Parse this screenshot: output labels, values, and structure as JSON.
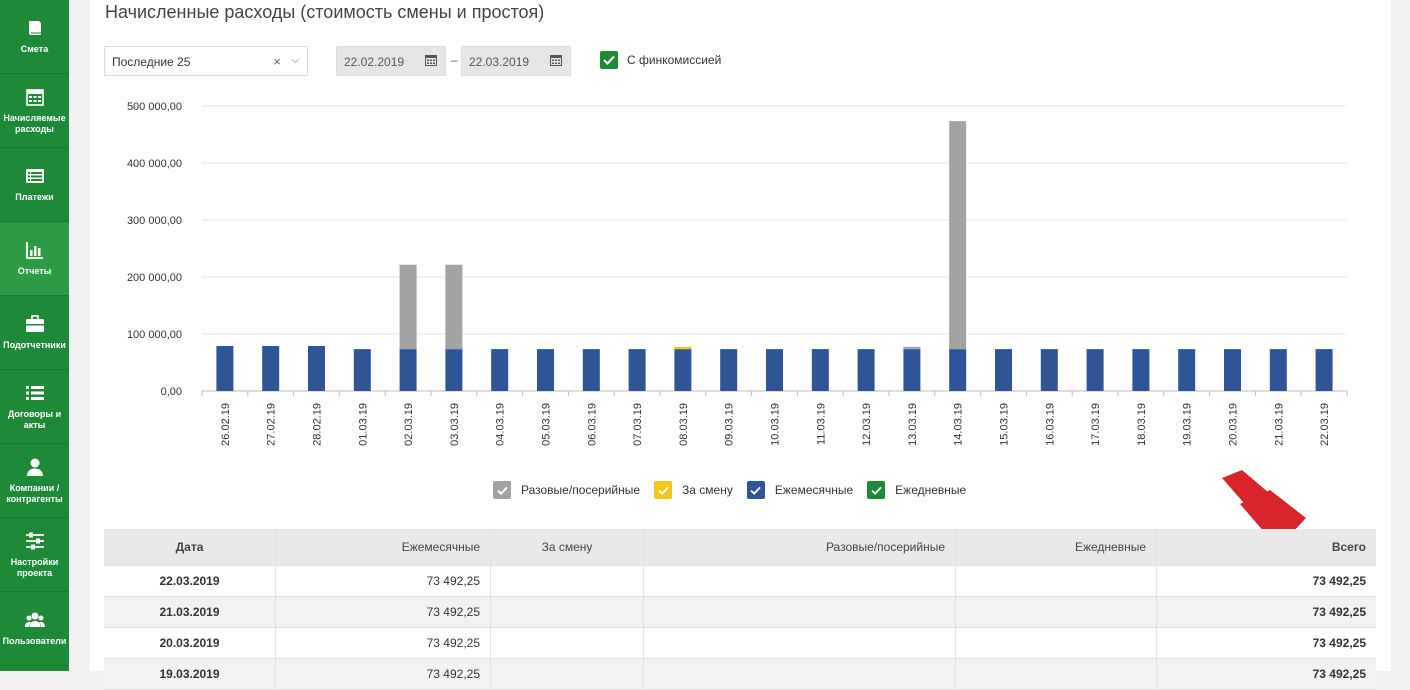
{
  "sidebar": {
    "items": [
      {
        "label": "Смета",
        "icon": "book-icon"
      },
      {
        "label": "Начисляемые расходы",
        "icon": "calendar-icon"
      },
      {
        "label": "Платежи",
        "icon": "list-card-icon"
      },
      {
        "label": "Отчеты",
        "icon": "bar-chart-icon"
      },
      {
        "label": "Подотчетники",
        "icon": "briefcase-icon"
      },
      {
        "label": "Договоры и акты",
        "icon": "list-icon"
      },
      {
        "label": "Компании / контрагенты",
        "icon": "user-icon"
      },
      {
        "label": "Настройки проекта",
        "icon": "sliders-icon"
      },
      {
        "label": "Пользователи",
        "icon": "users-icon"
      }
    ],
    "active_index": 3
  },
  "page": {
    "title": "Начисленные расходы (стоимость смены и простоя)"
  },
  "filters": {
    "period_value": "Последние 25",
    "clear_glyph": "×",
    "date_from": "22.02.2019",
    "date_separator": "–",
    "date_to": "22.03.2019",
    "commission_label": "С финкомиссией",
    "commission_checked": true
  },
  "colors": {
    "accent": "#1e8a38",
    "gray": "#a3a3a3",
    "yellow": "#f5c518",
    "blue": "#2f5597",
    "green": "#1e8a38",
    "arrow_red": "#d9232d"
  },
  "chart_data": {
    "type": "bar",
    "stacked": true,
    "categories": [
      "26.02.19",
      "27.02.19",
      "28.02.19",
      "01.03.19",
      "02.03.19",
      "03.03.19",
      "04.03.19",
      "05.03.19",
      "06.03.19",
      "07.03.19",
      "08.03.19",
      "09.03.19",
      "10.03.19",
      "11.03.19",
      "12.03.19",
      "13.03.19",
      "14.03.19",
      "15.03.19",
      "16.03.19",
      "17.03.19",
      "18.03.19",
      "19.03.19",
      "20.03.19",
      "21.03.19",
      "22.03.19"
    ],
    "series": [
      {
        "name": "Ежемесячные",
        "color": "#2f5597",
        "values": [
          79000,
          79000,
          79000,
          73492.25,
          73492.25,
          73492.25,
          73492.25,
          73492.25,
          73492.25,
          73492.25,
          73492.25,
          73492.25,
          73492.25,
          73492.25,
          73492.25,
          73492.25,
          73492.25,
          73492.25,
          73492.25,
          73492.25,
          73492.25,
          73492.25,
          73492.25,
          73492.25,
          73492.25
        ]
      },
      {
        "name": "За смену",
        "color": "#f5c518",
        "values": [
          0,
          0,
          0,
          0,
          0,
          0,
          0,
          0,
          0,
          0,
          4000,
          0,
          0,
          0,
          0,
          0,
          0,
          0,
          0,
          0,
          0,
          0,
          0,
          0,
          0
        ]
      },
      {
        "name": "Разовые/посерийные",
        "color": "#a3a3a3",
        "values": [
          0,
          0,
          0,
          0,
          148000,
          148000,
          0,
          0,
          0,
          0,
          0,
          0,
          0,
          0,
          0,
          4000,
          400000,
          0,
          0,
          0,
          0,
          0,
          0,
          0,
          0
        ]
      },
      {
        "name": "Ежедневные",
        "color": "#1e8a38",
        "values": [
          0,
          0,
          0,
          0,
          0,
          0,
          0,
          0,
          0,
          0,
          0,
          0,
          0,
          0,
          0,
          0,
          0,
          0,
          0,
          0,
          0,
          0,
          0,
          0,
          0
        ]
      }
    ],
    "yticks": [
      "0,00",
      "100 000,00",
      "200 000,00",
      "300 000,00",
      "400 000,00",
      "500 000,00"
    ],
    "ylim": [
      0,
      500000
    ],
    "grid": true,
    "legend_position": "bottom"
  },
  "legend": [
    {
      "label": "Разовые/посерийные",
      "color": "#a3a3a3"
    },
    {
      "label": "За смену",
      "color": "#f5c518"
    },
    {
      "label": "Ежемесячные",
      "color": "#2f5597"
    },
    {
      "label": "Ежедневные",
      "color": "#1e8a38"
    }
  ],
  "table": {
    "headers": [
      "Дата",
      "Ежемесячные",
      "За смену",
      "Разовые/посерийные",
      "Ежедневные",
      "Всего"
    ],
    "rows": [
      [
        "22.03.2019",
        "73 492,25",
        "",
        "",
        "",
        "73 492,25"
      ],
      [
        "21.03.2019",
        "73 492,25",
        "",
        "",
        "",
        "73 492,25"
      ],
      [
        "20.03.2019",
        "73 492,25",
        "",
        "",
        "",
        "73 492,25"
      ],
      [
        "19.03.2019",
        "73 492,25",
        "",
        "",
        "",
        "73 492,25"
      ]
    ]
  }
}
